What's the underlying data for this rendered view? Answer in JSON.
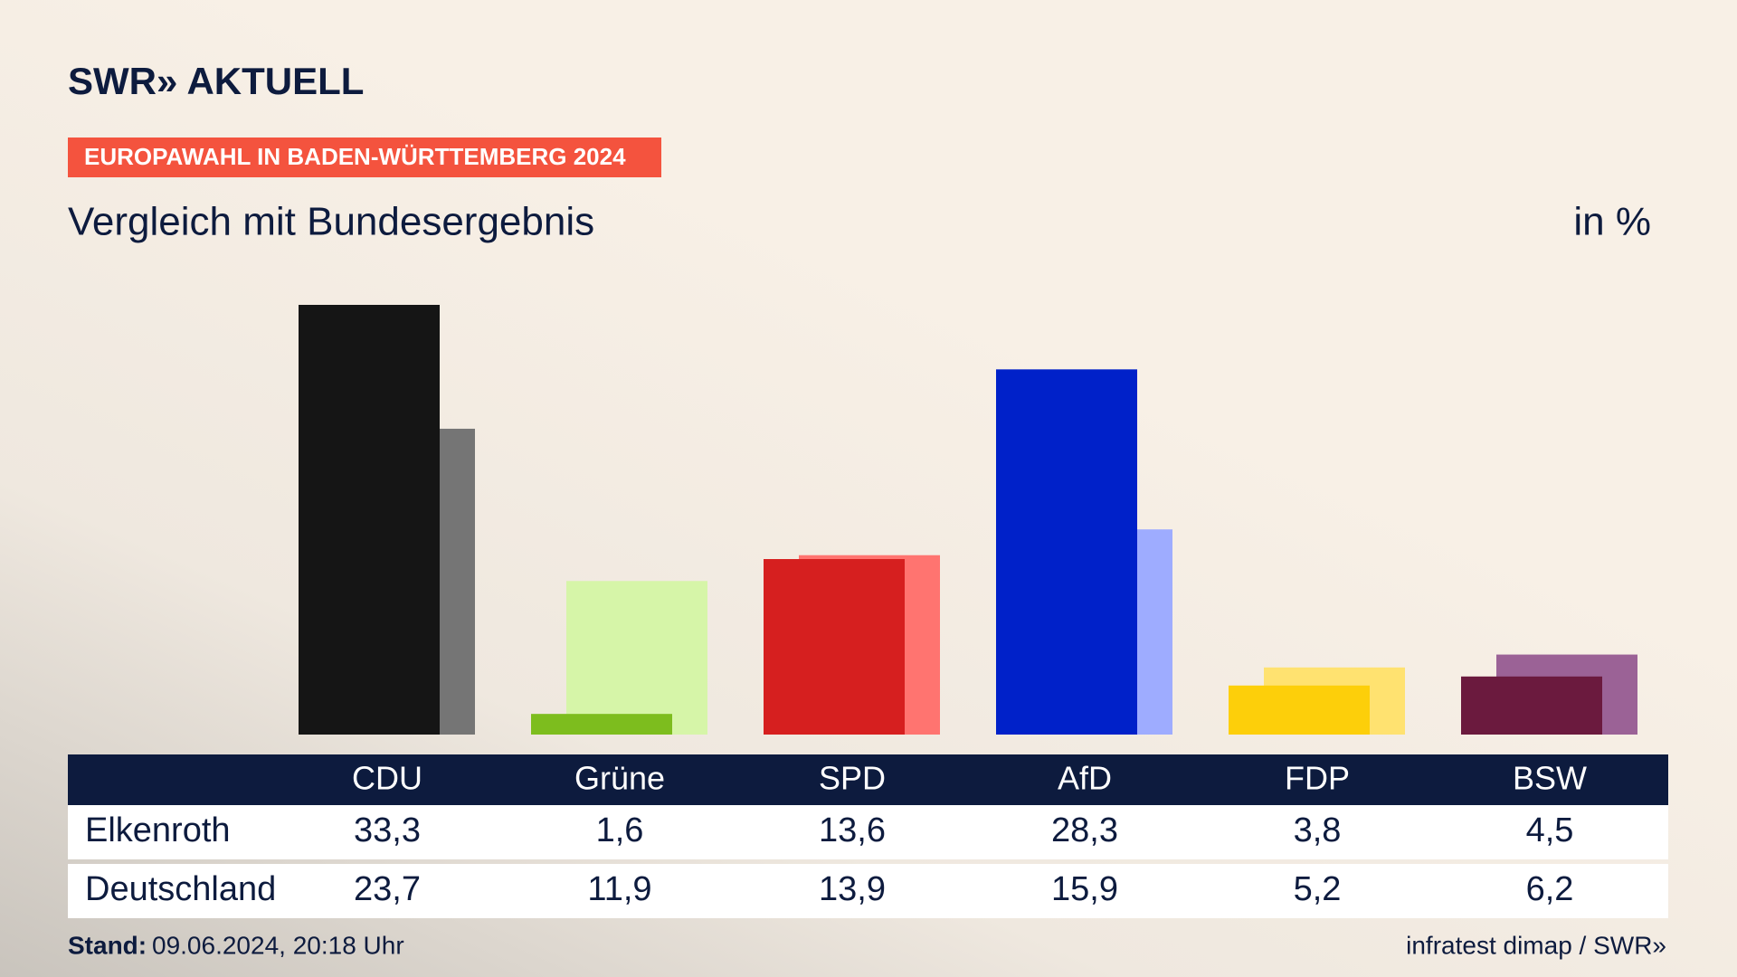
{
  "header": {
    "logo": "SWR» AKTUELL",
    "badge": "EUROPAWAHL IN BADEN-WÜRTTEMBERG 2024"
  },
  "chart_data": {
    "type": "bar",
    "title": "Vergleich mit Bundesergebnis",
    "unit": "in %",
    "categories": [
      "CDU",
      "Grüne",
      "SPD",
      "AfD",
      "FDP",
      "BSW"
    ],
    "series": [
      {
        "name": "Elkenroth",
        "colors": [
          "#151515",
          "#7dbd1e",
          "#d61f1f",
          "#0021c9",
          "#fdcf0a",
          "#6b1a3e"
        ],
        "values": [
          33.3,
          1.6,
          13.6,
          28.3,
          3.8,
          4.5
        ],
        "value_labels": [
          "33,3",
          "1,6",
          "13,6",
          "28,3",
          "3,8",
          "4,5"
        ]
      },
      {
        "name": "Deutschland",
        "colors": [
          "#757575",
          "#d6f5a8",
          "#ff7470",
          "#9eacff",
          "#ffe270",
          "#9b6296"
        ],
        "values": [
          23.7,
          11.9,
          13.9,
          15.9,
          5.2,
          6.2
        ],
        "value_labels": [
          "23,7",
          "11,9",
          "13,9",
          "15,9",
          "5,2",
          "6,2"
        ]
      }
    ]
  },
  "footer": {
    "stand_label": "Stand:",
    "stand": "09.06.2024, 20:18 Uhr",
    "source": "infratest dimap / SWR»"
  }
}
